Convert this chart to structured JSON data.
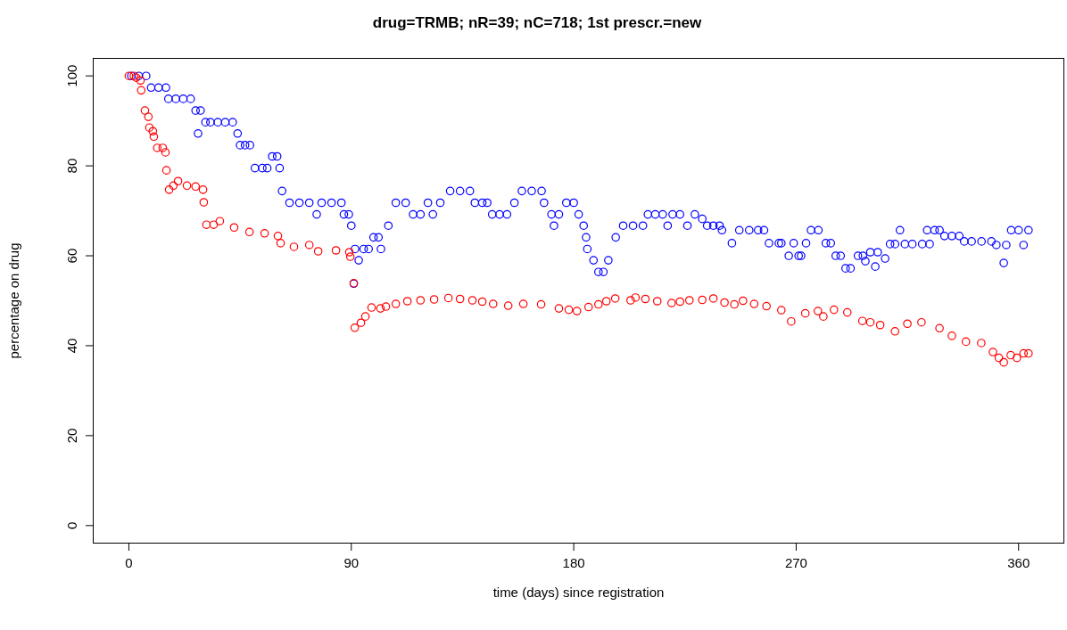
{
  "chart_data": {
    "type": "scatter",
    "title": "drug=TRMB; nR=39; nC=718; 1st prescr.=new",
    "xlabel": "time (days) since registration",
    "ylabel": "percentage on drug",
    "xlim": [
      -14.6,
      378.5
    ],
    "ylim": [
      -4,
      104
    ],
    "xticks": [
      0,
      90,
      180,
      270,
      360
    ],
    "yticks": [
      0,
      20,
      40,
      60,
      80,
      100
    ],
    "grid": false,
    "legend": false,
    "marker": "circle",
    "series": [
      {
        "color": "#0000ff",
        "x": [
          1,
          4,
          7,
          9,
          12,
          15,
          16,
          19,
          22,
          25,
          27,
          28,
          29,
          31,
          33,
          36,
          39,
          42,
          44,
          45,
          47,
          49,
          51,
          54,
          56,
          58,
          60,
          61,
          62,
          65,
          69,
          73,
          76,
          78,
          82,
          86,
          87,
          89,
          90,
          91,
          91.5,
          93,
          95,
          97,
          99,
          101,
          102,
          105,
          108,
          112,
          115,
          118,
          121,
          123,
          126,
          130,
          134,
          138,
          140,
          143,
          145,
          147,
          150,
          153,
          156,
          159,
          163,
          167,
          168,
          171,
          172,
          174,
          177,
          180,
          182,
          184,
          185,
          185.5,
          188,
          190,
          192,
          194,
          197,
          200,
          204,
          208,
          210,
          213,
          216,
          218,
          220,
          223,
          226,
          229,
          232,
          234,
          236.5,
          239,
          240,
          244,
          247,
          251,
          254.6,
          257,
          259,
          263,
          264,
          267,
          269,
          271,
          272,
          274,
          276,
          279,
          282,
          284,
          286,
          288,
          290,
          292,
          295,
          297,
          298,
          300,
          302,
          303,
          306,
          308,
          310,
          312,
          314,
          317,
          321,
          323,
          324,
          326,
          328,
          330,
          333,
          336,
          338,
          341,
          345,
          349,
          351,
          354,
          355,
          357,
          360,
          362,
          364
        ],
        "values": [
          100,
          100,
          100,
          97.4,
          97.4,
          97.4,
          94.9,
          94.9,
          94.9,
          94.9,
          92.3,
          87.2,
          92.3,
          89.7,
          89.7,
          89.7,
          89.7,
          89.7,
          87.2,
          84.6,
          84.6,
          84.6,
          79.5,
          79.5,
          79.5,
          82.1,
          82.1,
          79.5,
          74.4,
          71.8,
          71.8,
          71.8,
          69.2,
          71.8,
          71.8,
          71.8,
          69.2,
          69.2,
          66.7,
          53.8,
          61.5,
          59,
          61.5,
          61.5,
          64.1,
          64.1,
          61.5,
          66.7,
          71.8,
          71.8,
          69.2,
          69.2,
          71.8,
          69.2,
          71.8,
          74.4,
          74.4,
          74.4,
          71.8,
          71.8,
          71.8,
          69.2,
          69.2,
          69.2,
          71.8,
          74.4,
          74.4,
          74.4,
          71.8,
          69.2,
          66.7,
          69.2,
          71.8,
          71.8,
          69.2,
          66.7,
          64.1,
          61.5,
          59,
          56.4,
          56.4,
          59,
          64.1,
          66.7,
          66.7,
          66.7,
          69.2,
          69.2,
          69.2,
          66.7,
          69.2,
          69.2,
          66.7,
          69.2,
          68.2,
          66.7,
          66.7,
          66.7,
          65.7,
          62.8,
          65.7,
          65.7,
          65.7,
          65.7,
          62.8,
          62.8,
          62.8,
          60,
          62.8,
          60,
          60,
          62.8,
          65.7,
          65.7,
          62.8,
          62.8,
          60,
          60,
          57.2,
          57.2,
          60,
          60,
          58.8,
          60.8,
          57.6,
          60.8,
          59.4,
          62.6,
          62.6,
          65.7,
          62.6,
          62.6,
          62.6,
          65.7,
          62.6,
          65.7,
          65.7,
          64.4,
          64.4,
          64.4,
          63.2,
          63.2,
          63.2,
          63.2,
          62.4,
          58.4,
          62.4,
          65.7,
          65.7,
          62.4,
          65.7
        ]
      },
      {
        "color": "#ff0000",
        "x": [
          0,
          2,
          3,
          4.7,
          5,
          6.5,
          7.9,
          8.3,
          9.7,
          10.1,
          11.5,
          13.7,
          14.8,
          15.2,
          16.3,
          18,
          19.9,
          23.5,
          27,
          30,
          30.3,
          31.4,
          34.3,
          36.8,
          42.6,
          48.8,
          54.9,
          60.3,
          61.4,
          66.8,
          73,
          76.6,
          83.8,
          89.2,
          89.6,
          91,
          91.4,
          93.9,
          95.7,
          98.2,
          101.8,
          104,
          108,
          112.7,
          118,
          123.5,
          129.3,
          134,
          139,
          143,
          147.4,
          153.5,
          159.6,
          166.8,
          174,
          178,
          181.3,
          186,
          190,
          193.2,
          196.8,
          203,
          205,
          209,
          213.8,
          219.6,
          223,
          226.8,
          232,
          236.5,
          241,
          245,
          248.5,
          253,
          258,
          264,
          268,
          273.7,
          278.8,
          281,
          285.3,
          290.7,
          296.8,
          300,
          304,
          310,
          315,
          320.7,
          328,
          333,
          338.7,
          344.9,
          349.6,
          352,
          354,
          356.8,
          359.3,
          362,
          364
        ],
        "values": [
          100,
          100,
          99.6,
          99,
          96.8,
          92.3,
          90.9,
          88.5,
          87.7,
          86.5,
          84,
          84,
          83,
          79,
          74.7,
          75.6,
          76.6,
          75.6,
          75.4,
          74.7,
          71.9,
          66.9,
          66.9,
          67.7,
          66.3,
          65.3,
          65,
          64.4,
          62.8,
          62,
          62.4,
          61,
          61.2,
          60.8,
          59.8,
          53.9,
          44,
          45.1,
          46.5,
          48.5,
          48.3,
          48.7,
          49.3,
          49.9,
          50.1,
          50.3,
          50.6,
          50.4,
          50.1,
          49.8,
          49.3,
          48.9,
          49.3,
          49.2,
          48.3,
          48,
          47.7,
          48.6,
          49.2,
          49.9,
          50.5,
          50.1,
          50.7,
          50.4,
          49.9,
          49.5,
          49.8,
          50.1,
          50.2,
          50.5,
          49.6,
          49.2,
          50,
          49.3,
          48.8,
          47.9,
          45.4,
          47.2,
          47.7,
          46.5,
          48,
          47.4,
          45.5,
          45.2,
          44.6,
          43.2,
          44.9,
          45.2,
          43.9,
          42.2,
          40.9,
          40.6,
          38.6,
          37.3,
          36.3,
          37.9,
          37.3,
          38.3,
          38.3
        ]
      }
    ]
  }
}
